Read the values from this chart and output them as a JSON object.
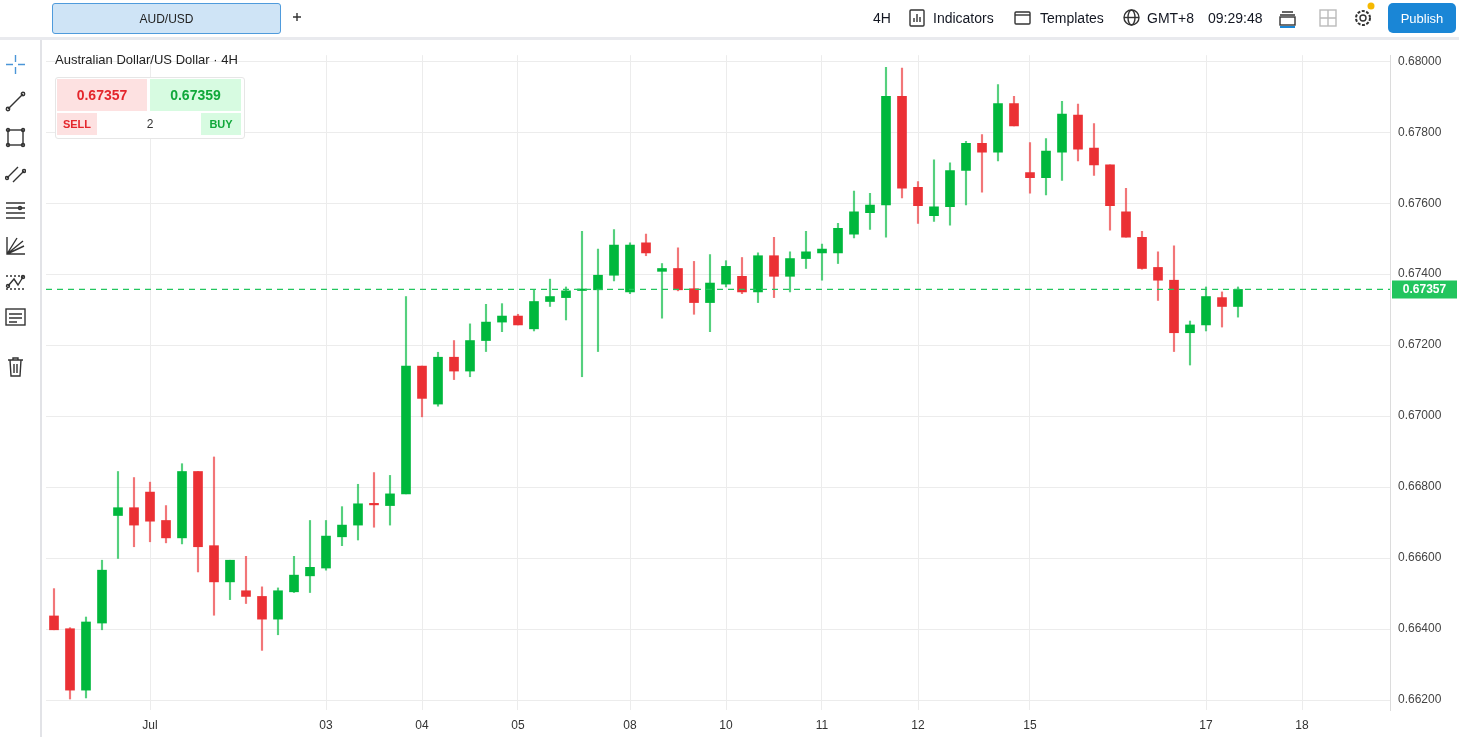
{
  "chart_data": {
    "type": "candlestick",
    "title": "Australian Dollar/US Dollar · 4H",
    "categories": [
      null,
      null,
      null,
      null,
      null,
      null,
      "Jul",
      null,
      null,
      null,
      null,
      null,
      null,
      null,
      null,
      null,
      null,
      "03",
      null,
      null,
      null,
      null,
      null,
      "04",
      null,
      null,
      null,
      null,
      null,
      "05",
      null,
      null,
      null,
      null,
      null,
      null,
      "08",
      null,
      null,
      null,
      null,
      null,
      "10",
      null,
      null,
      null,
      null,
      null,
      "11",
      null,
      null,
      null,
      null,
      null,
      "12",
      null,
      null,
      null,
      null,
      null,
      null,
      "15",
      null,
      null,
      null,
      null,
      null,
      null,
      null,
      null,
      null,
      null,
      "17",
      null,
      null,
      null,
      null,
      null,
      "18",
      null,
      null,
      null,
      null,
      null
    ],
    "ohlc": [
      [
        0.66437,
        0.66514,
        0.66398,
        0.66398
      ],
      [
        0.66401,
        0.66404,
        0.66203,
        0.66228
      ],
      [
        0.66228,
        0.66434,
        0.66206,
        0.6642
      ],
      [
        0.66417,
        0.66594,
        0.66398,
        0.66566
      ],
      [
        0.6672,
        0.66844,
        0.66599,
        0.66742
      ],
      [
        0.66742,
        0.66827,
        0.66632,
        0.66693
      ],
      [
        0.66786,
        0.66814,
        0.66646,
        0.66704
      ],
      [
        0.66706,
        0.66748,
        0.66643,
        0.66657
      ],
      [
        0.66657,
        0.66866,
        0.6664,
        0.66844
      ],
      [
        0.66844,
        0.66844,
        0.66561,
        0.66632
      ],
      [
        0.66635,
        0.66885,
        0.66439,
        0.66533
      ],
      [
        0.66533,
        0.66594,
        0.66483,
        0.66594
      ],
      [
        0.66508,
        0.66605,
        0.66472,
        0.66492
      ],
      [
        0.66492,
        0.66519,
        0.6634,
        0.66428
      ],
      [
        0.66428,
        0.66516,
        0.66384,
        0.66508
      ],
      [
        0.66505,
        0.66605,
        0.66503,
        0.66552
      ],
      [
        0.6655,
        0.66706,
        0.66503,
        0.66574
      ],
      [
        0.66572,
        0.66706,
        0.66566,
        0.66662
      ],
      [
        0.6666,
        0.66745,
        0.66635,
        0.66693
      ],
      [
        0.66693,
        0.66808,
        0.66651,
        0.66753
      ],
      [
        0.66753,
        0.66841,
        0.66687,
        0.6675
      ],
      [
        0.66748,
        0.66833,
        0.66693,
        0.66781
      ],
      [
        0.66781,
        0.67337,
        0.66781,
        0.67141
      ],
      [
        0.67141,
        0.67141,
        0.66998,
        0.6705
      ],
      [
        0.67034,
        0.6718,
        0.67028,
        0.67166
      ],
      [
        0.67166,
        0.67213,
        0.67103,
        0.67127
      ],
      [
        0.67127,
        0.6726,
        0.67111,
        0.67213
      ],
      [
        0.67213,
        0.67315,
        0.67182,
        0.67265
      ],
      [
        0.67265,
        0.67317,
        0.67238,
        0.67282
      ],
      [
        0.67282,
        0.67287,
        0.67257,
        0.67257
      ],
      [
        0.67246,
        0.67356,
        0.6724,
        0.67323
      ],
      [
        0.67323,
        0.67386,
        0.67309,
        0.67337
      ],
      [
        0.67334,
        0.67364,
        0.67271,
        0.67353
      ],
      [
        0.67354,
        0.67521,
        0.67111,
        0.67357
      ],
      [
        0.67356,
        0.67471,
        0.67182,
        0.67397
      ],
      [
        0.67397,
        0.67526,
        0.67381,
        0.67482
      ],
      [
        0.6735,
        0.67488,
        0.67345,
        0.67482
      ],
      [
        0.67488,
        0.67513,
        0.67452,
        0.6746
      ],
      [
        0.67408,
        0.6743,
        0.67276,
        0.67416
      ],
      [
        0.67416,
        0.67474,
        0.67353,
        0.67356
      ],
      [
        0.67359,
        0.67436,
        0.67287,
        0.6732
      ],
      [
        0.6732,
        0.67455,
        0.67238,
        0.67375
      ],
      [
        0.67372,
        0.67438,
        0.67364,
        0.67422
      ],
      [
        0.67394,
        0.67447,
        0.67345,
        0.6735
      ],
      [
        0.6735,
        0.6746,
        0.6732,
        0.67452
      ],
      [
        0.67452,
        0.67504,
        0.67334,
        0.67394
      ],
      [
        0.67394,
        0.67463,
        0.6735,
        0.67444
      ],
      [
        0.67444,
        0.67521,
        0.67416,
        0.67463
      ],
      [
        0.6746,
        0.67485,
        0.67383,
        0.67471
      ],
      [
        0.6746,
        0.67543,
        0.6743,
        0.67529
      ],
      [
        0.67513,
        0.67634,
        0.67502,
        0.67576
      ],
      [
        0.67573,
        0.67628,
        0.67526,
        0.67595
      ],
      [
        0.67595,
        0.67983,
        0.67504,
        0.67901
      ],
      [
        0.67901,
        0.67981,
        0.67615,
        0.67642
      ],
      [
        0.67645,
        0.67661,
        0.67543,
        0.67593
      ],
      [
        0.67565,
        0.67722,
        0.67549,
        0.6759
      ],
      [
        0.6759,
        0.67714,
        0.67538,
        0.67692
      ],
      [
        0.67692,
        0.67774,
        0.67595,
        0.67769
      ],
      [
        0.67769,
        0.67793,
        0.67631,
        0.67744
      ],
      [
        0.67744,
        0.67934,
        0.67719,
        0.67881
      ],
      [
        0.67881,
        0.67901,
        0.67818,
        0.67818
      ],
      [
        0.67686,
        0.67771,
        0.67628,
        0.67672
      ],
      [
        0.67672,
        0.67782,
        0.67623,
        0.67747
      ],
      [
        0.67744,
        0.67887,
        0.67664,
        0.67851
      ],
      [
        0.67848,
        0.67879,
        0.67719,
        0.67752
      ],
      [
        0.67755,
        0.67824,
        0.67678,
        0.67708
      ],
      [
        0.67708,
        0.67708,
        0.67524,
        0.67593
      ],
      [
        0.67576,
        0.67642,
        0.67504,
        0.67504
      ],
      [
        0.67504,
        0.67521,
        0.67414,
        0.67416
      ],
      [
        0.67419,
        0.67463,
        0.67326,
        0.67383
      ],
      [
        0.67383,
        0.6748,
        0.67182,
        0.67235
      ],
      [
        0.67235,
        0.67268,
        0.67144,
        0.67257
      ],
      [
        0.67257,
        0.67364,
        0.6724,
        0.67337
      ],
      [
        0.67334,
        0.6735,
        0.67251,
        0.67309
      ],
      [
        0.67309,
        0.67364,
        0.67279,
        0.67357
      ],
      null,
      null,
      null,
      null,
      null,
      null,
      null,
      null,
      null
    ],
    "colors": [
      "#eb3135",
      "#eb3135",
      "#00b83d",
      "#00b83d",
      "#00b83d",
      "#eb3135",
      "#eb3135",
      "#eb3135",
      "#00b83d",
      "#eb3135",
      "#eb3135",
      "#00b83d",
      "#eb3135",
      "#eb3135",
      "#00b83d",
      "#00b83d",
      "#00b83d",
      "#00b83d",
      "#00b83d",
      "#00b83d",
      "#eb3135",
      "#00b83d",
      "#00b83d",
      "#eb3135",
      "#00b83d",
      "#eb3135",
      "#00b83d",
      "#00b83d",
      "#00b83d",
      "#eb3135",
      "#00b83d",
      "#00b83d",
      "#00b83d",
      "#00b83d",
      "#00b83d",
      "#00b83d",
      "#00b83d",
      "#eb3135",
      "#00b83d",
      "#eb3135",
      "#eb3135",
      "#00b83d",
      "#00b83d",
      "#eb3135",
      "#00b83d",
      "#eb3135",
      "#00b83d",
      "#00b83d",
      "#00b83d",
      "#00b83d",
      "#00b83d",
      "#00b83d",
      "#00b83d",
      "#eb3135",
      "#eb3135",
      "#00b83d",
      "#00b83d",
      "#00b83d",
      "#eb3135",
      "#00b83d",
      "#eb3135",
      "#eb3135",
      "#00b83d",
      "#00b83d",
      "#eb3135",
      "#eb3135",
      "#eb3135",
      "#eb3135",
      "#eb3135",
      "#eb3135",
      "#eb3135",
      "#00b83d",
      "#00b83d",
      "#eb3135",
      "#00b83d",
      null,
      null,
      null,
      null,
      null,
      null,
      null,
      null,
      null
    ],
    "ylim": [
      0.66172,
      0.68017
    ],
    "yticks": [
      {
        "value": 0.662,
        "label": "0.66200"
      },
      {
        "value": 0.664,
        "label": "0.66400"
      },
      {
        "value": 0.666,
        "label": "0.66600"
      },
      {
        "value": 0.668,
        "label": "0.66800"
      },
      {
        "value": 0.67,
        "label": "0.67000"
      },
      {
        "value": 0.672,
        "label": "0.67200"
      },
      {
        "value": 0.674,
        "label": "0.67400"
      },
      {
        "value": 0.676,
        "label": "0.67600"
      },
      {
        "value": 0.678,
        "label": "0.67800"
      },
      {
        "value": 0.68,
        "label": "0.68000"
      }
    ],
    "grid": true,
    "ref_lines": [
      {
        "axis": "y",
        "value": 0.67357,
        "label": "0.67357",
        "color": "#22c55e",
        "line_style": "dashed"
      }
    ],
    "annotations": [
      "AUD/USD",
      "4H",
      "Indicators",
      "Templates",
      "GMT+8",
      "09:29:48",
      "Publish",
      "0.67357",
      "SELL",
      "2",
      "0.67359",
      "BUY"
    ]
  }
}
